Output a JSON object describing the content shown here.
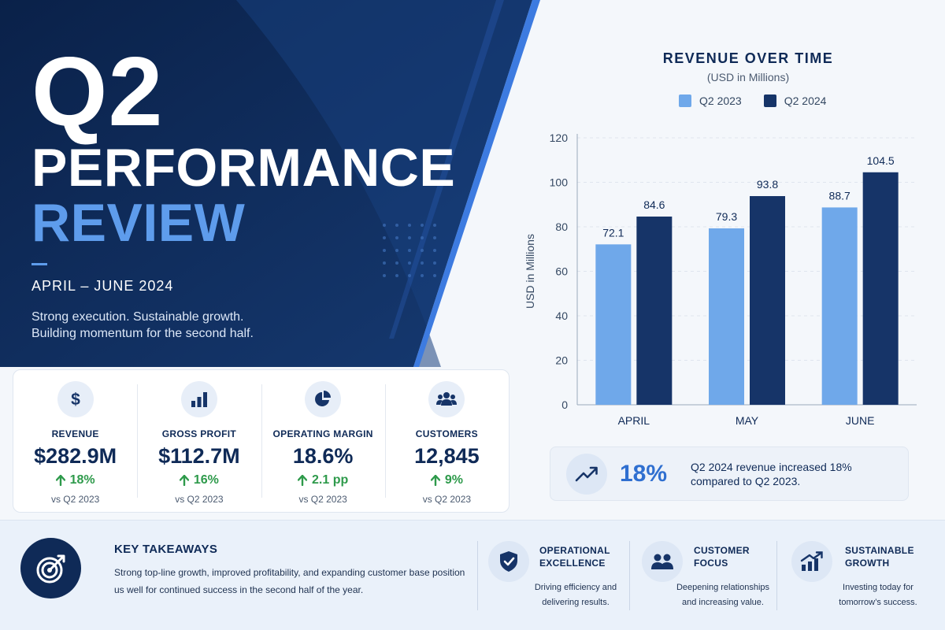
{
  "hero": {
    "title_big": "Q2",
    "title_line2": "PERFORMANCE",
    "title_line3": "REVIEW",
    "dates": "APRIL – JUNE 2024",
    "tagline_1": "Strong execution. Sustainable growth.",
    "tagline_2": "Building momentum for the second half."
  },
  "kpis": [
    {
      "label": "REVENUE",
      "value": "$282.9M",
      "change": "18%",
      "vs": "vs Q2 2023",
      "icon": "dollar-icon"
    },
    {
      "label": "GROSS PROFIT",
      "value": "$112.7M",
      "change": "16%",
      "vs": "vs Q2 2023",
      "icon": "bar-chart-icon"
    },
    {
      "label": "OPERATING MARGIN",
      "value": "18.6%",
      "change": "2.1 pp",
      "vs": "vs Q2 2023",
      "icon": "pie-chart-icon"
    },
    {
      "label": "CUSTOMERS",
      "value": "12,845",
      "change": "9%",
      "vs": "vs Q2 2023",
      "icon": "users-icon"
    }
  ],
  "colors": {
    "navy": "#0f2a57",
    "accent_blue": "#5e9cec",
    "q2_2023": "#6fa8ea",
    "q2_2024": "#163468",
    "positive": "#2e9a4b"
  },
  "chart_data": {
    "type": "bar",
    "title": "REVENUE OVER TIME",
    "subtitle": "(USD in Millions)",
    "ylabel": "USD in Millions",
    "categories": [
      "APRIL",
      "MAY",
      "JUNE"
    ],
    "series": [
      {
        "name": "Q2 2023",
        "values": [
          72.1,
          79.3,
          88.7
        ],
        "color": "#6fa8ea"
      },
      {
        "name": "Q2 2024",
        "values": [
          84.6,
          93.8,
          104.5
        ],
        "color": "#163468"
      }
    ],
    "ylim": [
      0,
      120
    ],
    "yticks": [
      0,
      20,
      40,
      60,
      80,
      100,
      120
    ],
    "grid": true,
    "legend": "top"
  },
  "callout": {
    "value": "18%",
    "text": "Q2 2024 revenue increased 18% compared to Q2 2023.",
    "icon": "trend-up-icon"
  },
  "takeaways": {
    "title": "KEY TAKEAWAYS",
    "text": "Strong top-line growth, improved profitability, and expanding customer base position us well for continued success in the second half of the year.",
    "icon": "target-icon",
    "pillars": [
      {
        "title_1": "OPERATIONAL",
        "title_2": "EXCELLENCE",
        "text_1": "Driving efficiency and",
        "text_2": "delivering results.",
        "icon": "shield-check-icon"
      },
      {
        "title_1": "CUSTOMER",
        "title_2": "FOCUS",
        "text_1": "Deepening relationships",
        "text_2": "and increasing value.",
        "icon": "users-icon"
      },
      {
        "title_1": "SUSTAINABLE",
        "title_2": "GROWTH",
        "text_1": "Investing today for",
        "text_2": "tomorrow’s success.",
        "icon": "growth-chart-icon"
      }
    ]
  }
}
